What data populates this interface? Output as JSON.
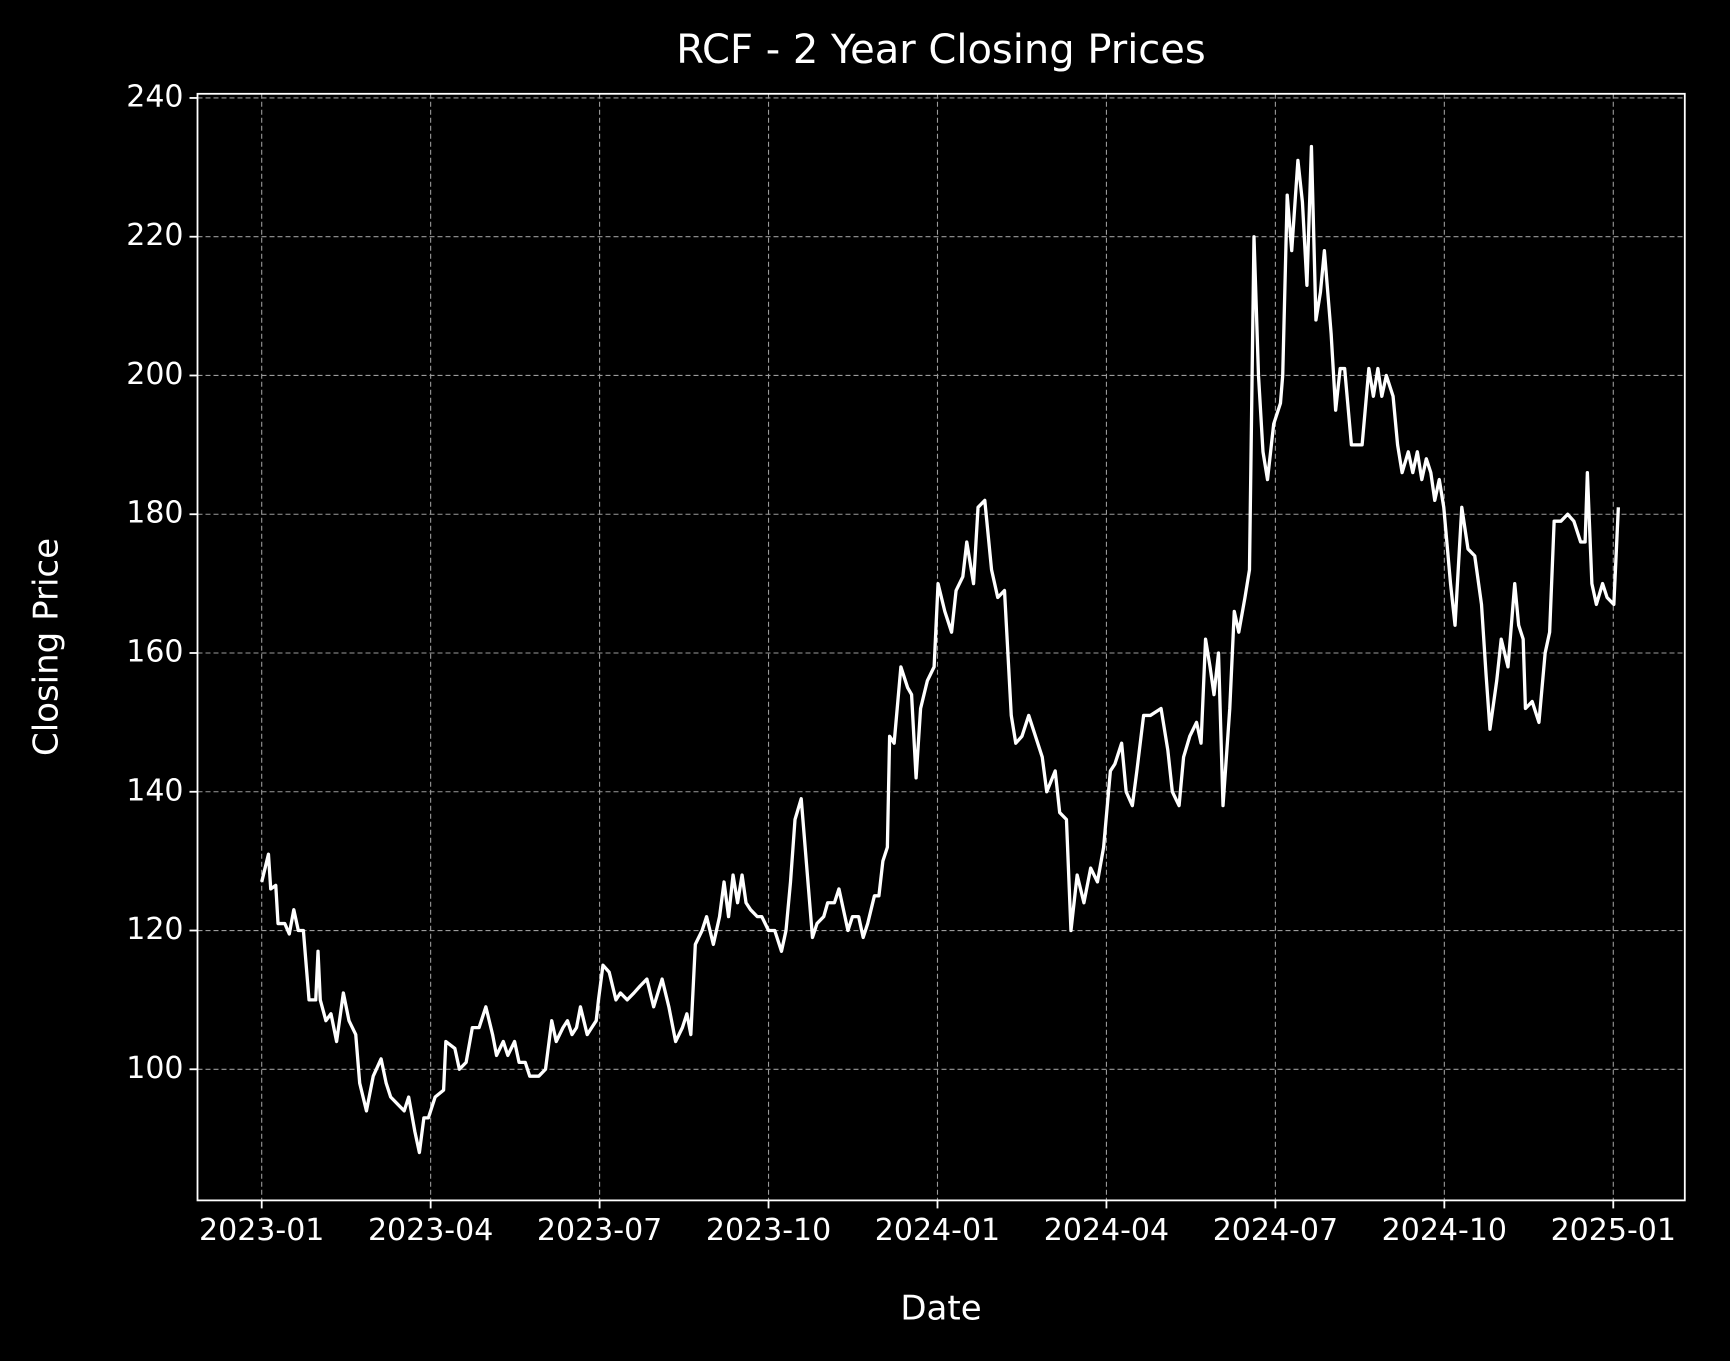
{
  "chart_data": {
    "type": "line",
    "title": "RCF - 2 Year Closing Prices",
    "x_label": "Date",
    "y_label": "Closing Price",
    "color": "#ffffff",
    "grid": true,
    "xlim": [
      -1.14,
      25.27
    ],
    "xticks": [
      {
        "value": 0,
        "label": "2023-01"
      },
      {
        "value": 3,
        "label": "2023-04"
      },
      {
        "value": 6,
        "label": "2023-07"
      },
      {
        "value": 9,
        "label": "2023-10"
      },
      {
        "value": 12,
        "label": "2024-01"
      },
      {
        "value": 15,
        "label": "2024-04"
      },
      {
        "value": 18,
        "label": "2024-07"
      },
      {
        "value": 21,
        "label": "2024-10"
      },
      {
        "value": 24,
        "label": "2025-01"
      }
    ],
    "ylim": [
      81.1,
      240.6
    ],
    "yticks": [
      100,
      120,
      140,
      160,
      180,
      200,
      220,
      240
    ],
    "x": [
      0,
      0.12,
      0.16,
      0.25,
      0.29,
      0.41,
      0.49,
      0.57,
      0.65,
      0.74,
      0.84,
      0.96,
      1.0,
      1.04,
      1.14,
      1.23,
      1.33,
      1.45,
      1.55,
      1.67,
      1.74,
      1.86,
      1.98,
      2.12,
      2.21,
      2.29,
      2.41,
      2.53,
      2.61,
      2.72,
      2.8,
      2.88,
      2.96,
      3.08,
      3.23,
      3.27,
      3.43,
      3.51,
      3.63,
      3.74,
      3.86,
      3.98,
      4.1,
      4.17,
      4.29,
      4.37,
      4.49,
      4.57,
      4.68,
      4.76,
      4.92,
      5.04,
      5.15,
      5.23,
      5.35,
      5.43,
      5.51,
      5.59,
      5.66,
      5.78,
      5.86,
      5.94,
      5.98,
      6.06,
      6.17,
      6.29,
      6.37,
      6.49,
      6.61,
      6.72,
      6.84,
      6.96,
      7.11,
      7.23,
      7.35,
      7.47,
      7.55,
      7.62,
      7.7,
      7.82,
      7.9,
      8.02,
      8.13,
      8.21,
      8.29,
      8.37,
      8.45,
      8.53,
      8.6,
      8.68,
      8.8,
      8.88,
      9.0,
      9.11,
      9.23,
      9.31,
      9.39,
      9.47,
      9.58,
      9.7,
      9.78,
      9.86,
      9.98,
      10.05,
      10.17,
      10.25,
      10.33,
      10.41,
      10.49,
      10.6,
      10.68,
      10.76,
      10.88,
      10.96,
      11.03,
      11.11,
      11.15,
      11.23,
      11.35,
      11.47,
      11.54,
      11.62,
      11.7,
      11.82,
      11.94,
      12.01,
      12.13,
      12.25,
      12.33,
      12.45,
      12.52,
      12.64,
      12.72,
      12.84,
      12.96,
      13.07,
      13.19,
      13.31,
      13.39,
      13.5,
      13.62,
      13.74,
      13.86,
      13.94,
      14.09,
      14.17,
      14.29,
      14.37,
      14.48,
      14.6,
      14.72,
      14.84,
      14.95,
      15.07,
      15.15,
      15.27,
      15.35,
      15.46,
      15.54,
      15.66,
      15.78,
      15.97,
      16.09,
      16.17,
      16.29,
      16.37,
      16.48,
      16.6,
      16.68,
      16.76,
      16.84,
      16.91,
      16.99,
      17.07,
      17.19,
      17.27,
      17.35,
      17.46,
      17.54,
      17.62,
      17.7,
      17.78,
      17.86,
      17.97,
      18.09,
      18.13,
      18.21,
      18.29,
      18.4,
      18.48,
      18.56,
      18.64,
      18.72,
      18.8,
      18.87,
      18.99,
      19.07,
      19.15,
      19.23,
      19.35,
      19.46,
      19.54,
      19.66,
      19.74,
      19.82,
      19.89,
      19.97,
      20.09,
      20.17,
      20.25,
      20.36,
      20.44,
      20.52,
      20.6,
      20.68,
      20.76,
      20.83,
      20.91,
      20.99,
      21.11,
      21.19,
      21.31,
      21.42,
      21.54,
      21.66,
      21.74,
      21.81,
      21.93,
      22.01,
      22.13,
      22.25,
      22.32,
      22.4,
      22.44,
      22.56,
      22.68,
      22.79,
      22.87,
      22.95,
      23.07,
      23.19,
      23.3,
      23.42,
      23.5,
      23.54,
      23.62,
      23.7,
      23.81,
      23.89,
      24.01,
      24.09
    ],
    "values": [
      127,
      131,
      126,
      126.5,
      121,
      121,
      119.5,
      123,
      120,
      120,
      110,
      110,
      117,
      110,
      107,
      108,
      104,
      111,
      107,
      105,
      98,
      94,
      99,
      101.5,
      98,
      96,
      95,
      94,
      96,
      91,
      88,
      93,
      93,
      96,
      97,
      104,
      103,
      100,
      101,
      106,
      106,
      109,
      105,
      102,
      104,
      102,
      104,
      101,
      101,
      99,
      99,
      100,
      107,
      104,
      106,
      107,
      105,
      106,
      109,
      105,
      106,
      107,
      110,
      115,
      114,
      110,
      111,
      110,
      111,
      112,
      113,
      109,
      113,
      109,
      104,
      106,
      108,
      105,
      118,
      120,
      122,
      118,
      122,
      127,
      122,
      128,
      124,
      128,
      124,
      123,
      122,
      122,
      120,
      120,
      117,
      120,
      127,
      136,
      139,
      127,
      119,
      121,
      122,
      124,
      124,
      126,
      123,
      120,
      122,
      122,
      119,
      121,
      125,
      125,
      130,
      132,
      148,
      147,
      158,
      155,
      154,
      142,
      152,
      156,
      158,
      170,
      166,
      163,
      169,
      171,
      176,
      170,
      181,
      182,
      172,
      168,
      169,
      151,
      147,
      148,
      151,
      148,
      145,
      140,
      143,
      137,
      136,
      120,
      128,
      124,
      129,
      127,
      132,
      143,
      144,
      147,
      140,
      138,
      143,
      151,
      151,
      152,
      146,
      140,
      138,
      145,
      148,
      150,
      147,
      162,
      158,
      154,
      160,
      138,
      152,
      166,
      163,
      168,
      172,
      220,
      200,
      189,
      185,
      193,
      196,
      200,
      226,
      218,
      231,
      225,
      213,
      233,
      208,
      212,
      218,
      206,
      195,
      201,
      201,
      190,
      190,
      190,
      201,
      197,
      201,
      197,
      200,
      197,
      190,
      186,
      189,
      186,
      189,
      185,
      188,
      186,
      182,
      185,
      181,
      170,
      164,
      181,
      175,
      174,
      167,
      157,
      149,
      156,
      162,
      158,
      170,
      164,
      162,
      152,
      153,
      150,
      160,
      163,
      179,
      179,
      180,
      179,
      176,
      176,
      186,
      170,
      167,
      170,
      168,
      167,
      181
    ]
  }
}
